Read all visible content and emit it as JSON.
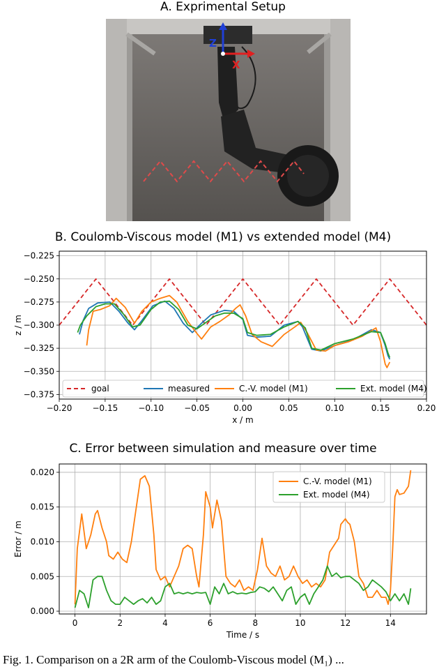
{
  "panel_a": {
    "title": "A. Exprimental Setup",
    "axis_z_label": "Z",
    "axis_x_label": "X"
  },
  "panel_b": {
    "title": "B. Coulomb-Viscous model (M1) vs extended model (M4)"
  },
  "panel_c": {
    "title": "C. Error between simulation and measure over time"
  },
  "caption": "Fig. 1.   Comparison on a 2R arm of the Coulomb-Viscous model (M₁) ...",
  "colors": {
    "goal": "#d62728",
    "measured": "#1f77b4",
    "m1": "#ff7f0e",
    "m4": "#2ca02c",
    "grid": "#b0b0b0",
    "photo_bg": "#6b6866"
  },
  "chart_data": [
    {
      "type": "line",
      "title": "B. Coulomb-Viscous model (M1) vs extended model (M4)",
      "xlabel": "x / m",
      "ylabel": "z / m",
      "xlim": [
        -0.2,
        0.2
      ],
      "ylim": [
        -0.38,
        -0.22
      ],
      "xticks": [
        -0.2,
        -0.15,
        -0.1,
        -0.05,
        0.0,
        0.05,
        0.1,
        0.15,
        0.2
      ],
      "xtick_labels": [
        "−0.20",
        "−0.15",
        "−0.10",
        "−0.05",
        "0.00",
        "0.05",
        "0.10",
        "0.15",
        "0.20"
      ],
      "yticks": [
        -0.225,
        -0.25,
        -0.275,
        -0.3,
        -0.325,
        -0.35,
        -0.375
      ],
      "ytick_labels": [
        "−0.225",
        "−0.250",
        "−0.275",
        "−0.300",
        "−0.325",
        "−0.350",
        "−0.375"
      ],
      "grid": true,
      "legend_position": "bottom",
      "series": [
        {
          "name": "goal",
          "color": "#d62728",
          "dashed": true,
          "x": [
            -0.2,
            -0.16,
            -0.12,
            -0.08,
            -0.04,
            0.0,
            0.04,
            0.08,
            0.12,
            0.16,
            0.2
          ],
          "y": [
            -0.3,
            -0.25,
            -0.3,
            -0.25,
            -0.3,
            -0.25,
            -0.3,
            -0.25,
            -0.3,
            -0.25,
            -0.3
          ]
        },
        {
          "name": "measured",
          "color": "#1f77b4",
          "dashed": false,
          "x": [
            -0.178,
            -0.174,
            -0.168,
            -0.158,
            -0.145,
            -0.135,
            -0.125,
            -0.118,
            -0.11,
            -0.098,
            -0.085,
            -0.075,
            -0.065,
            -0.055,
            -0.045,
            -0.035,
            -0.02,
            -0.01,
            0.0,
            0.005,
            0.015,
            0.03,
            0.045,
            0.06,
            0.065,
            0.075,
            0.085,
            0.1,
            0.12,
            0.14,
            0.15,
            0.155,
            0.158,
            0.16
          ],
          "y": [
            -0.31,
            -0.295,
            -0.282,
            -0.276,
            -0.275,
            -0.285,
            -0.298,
            -0.305,
            -0.295,
            -0.279,
            -0.274,
            -0.282,
            -0.298,
            -0.308,
            -0.298,
            -0.289,
            -0.284,
            -0.285,
            -0.294,
            -0.311,
            -0.313,
            -0.312,
            -0.3,
            -0.296,
            -0.302,
            -0.326,
            -0.328,
            -0.322,
            -0.316,
            -0.305,
            -0.308,
            -0.322,
            -0.333,
            -0.337
          ]
        },
        {
          "name": "C.-V. model (M1)",
          "color": "#ff7f0e",
          "dashed": false,
          "x": [
            -0.17,
            -0.168,
            -0.163,
            -0.155,
            -0.145,
            -0.138,
            -0.128,
            -0.118,
            -0.11,
            -0.1,
            -0.09,
            -0.08,
            -0.072,
            -0.06,
            -0.05,
            -0.045,
            -0.035,
            -0.025,
            -0.015,
            -0.008,
            -0.003,
            0.003,
            0.01,
            0.02,
            0.032,
            0.045,
            0.058,
            0.063,
            0.07,
            0.08,
            0.09,
            0.1,
            0.115,
            0.13,
            0.145,
            0.15,
            0.155,
            0.157,
            0.16
          ],
          "y": [
            -0.322,
            -0.305,
            -0.285,
            -0.283,
            -0.279,
            -0.271,
            -0.281,
            -0.298,
            -0.285,
            -0.275,
            -0.271,
            -0.268,
            -0.275,
            -0.296,
            -0.309,
            -0.315,
            -0.302,
            -0.296,
            -0.289,
            -0.282,
            -0.278,
            -0.29,
            -0.31,
            -0.318,
            -0.323,
            -0.31,
            -0.301,
            -0.297,
            -0.308,
            -0.327,
            -0.328,
            -0.322,
            -0.318,
            -0.312,
            -0.303,
            -0.318,
            -0.342,
            -0.346,
            -0.34
          ]
        },
        {
          "name": "Ext. model (M4)",
          "color": "#2ca02c",
          "dashed": false,
          "x": [
            -0.18,
            -0.177,
            -0.17,
            -0.16,
            -0.15,
            -0.14,
            -0.13,
            -0.12,
            -0.112,
            -0.1,
            -0.09,
            -0.08,
            -0.07,
            -0.06,
            -0.05,
            -0.04,
            -0.03,
            -0.02,
            -0.01,
            0.0,
            0.005,
            0.015,
            0.03,
            0.045,
            0.06,
            0.068,
            0.075,
            0.085,
            0.1,
            0.12,
            0.14,
            0.15,
            0.155,
            0.158,
            0.16
          ],
          "y": [
            -0.308,
            -0.3,
            -0.29,
            -0.28,
            -0.277,
            -0.277,
            -0.288,
            -0.302,
            -0.3,
            -0.283,
            -0.275,
            -0.274,
            -0.283,
            -0.3,
            -0.304,
            -0.297,
            -0.29,
            -0.287,
            -0.287,
            -0.293,
            -0.308,
            -0.311,
            -0.31,
            -0.302,
            -0.296,
            -0.303,
            -0.325,
            -0.327,
            -0.32,
            -0.315,
            -0.307,
            -0.308,
            -0.32,
            -0.33,
            -0.335
          ]
        }
      ]
    },
    {
      "type": "line",
      "title": "C. Error between simulation and measure over time",
      "xlabel": "Time / s",
      "ylabel": "Error / m",
      "xlim": [
        -0.7,
        15.6
      ],
      "ylim": [
        -0.0004,
        0.0212
      ],
      "xticks": [
        0,
        2,
        4,
        6,
        8,
        10,
        12,
        14
      ],
      "xtick_labels": [
        "0",
        "2",
        "4",
        "6",
        "8",
        "10",
        "12",
        "14"
      ],
      "yticks": [
        0.0,
        0.005,
        0.01,
        0.015,
        0.02
      ],
      "ytick_labels": [
        "0.000",
        "0.005",
        "0.010",
        "0.015",
        "0.020"
      ],
      "grid": true,
      "legend_position": "top-right",
      "series": [
        {
          "name": "C.-V. model (M1)",
          "color": "#ff7f0e",
          "x": [
            0.0,
            0.1,
            0.3,
            0.5,
            0.7,
            0.9,
            1.0,
            1.2,
            1.4,
            1.5,
            1.7,
            1.9,
            2.1,
            2.3,
            2.5,
            2.7,
            2.9,
            3.1,
            3.3,
            3.5,
            3.6,
            3.8,
            4.0,
            4.2,
            4.4,
            4.6,
            4.8,
            5.0,
            5.2,
            5.4,
            5.5,
            5.7,
            5.8,
            6.0,
            6.1,
            6.3,
            6.5,
            6.7,
            6.9,
            7.1,
            7.3,
            7.5,
            7.7,
            7.9,
            8.1,
            8.3,
            8.5,
            8.7,
            8.9,
            9.1,
            9.3,
            9.5,
            9.7,
            9.9,
            10.1,
            10.3,
            10.5,
            10.7,
            10.9,
            11.1,
            11.3,
            11.5,
            11.7,
            11.8,
            12.0,
            12.1,
            12.2,
            12.4,
            12.6,
            12.8,
            13.0,
            13.2,
            13.4,
            13.6,
            13.8,
            13.9,
            14.0,
            14.1,
            14.2,
            14.3,
            14.4,
            14.6,
            14.8,
            14.9
          ],
          "y": [
            0.001,
            0.009,
            0.014,
            0.009,
            0.011,
            0.014,
            0.0145,
            0.012,
            0.01,
            0.008,
            0.0075,
            0.0085,
            0.0075,
            0.007,
            0.01,
            0.0145,
            0.019,
            0.0195,
            0.018,
            0.011,
            0.006,
            0.0045,
            0.005,
            0.0035,
            0.005,
            0.0065,
            0.009,
            0.0095,
            0.009,
            0.005,
            0.0035,
            0.011,
            0.0172,
            0.015,
            0.012,
            0.016,
            0.013,
            0.005,
            0.004,
            0.0035,
            0.0045,
            0.003,
            0.0035,
            0.003,
            0.006,
            0.0105,
            0.0065,
            0.0055,
            0.005,
            0.0065,
            0.0045,
            0.005,
            0.0065,
            0.005,
            0.004,
            0.0045,
            0.0035,
            0.004,
            0.0035,
            0.0045,
            0.0085,
            0.0095,
            0.0105,
            0.0125,
            0.0133,
            0.0128,
            0.0125,
            0.01,
            0.005,
            0.004,
            0.002,
            0.002,
            0.003,
            0.002,
            0.002,
            0.001,
            0.003,
            0.009,
            0.0165,
            0.0175,
            0.0168,
            0.017,
            0.018,
            0.0203
          ]
        },
        {
          "name": "Ext. model (M4)",
          "color": "#2ca02c",
          "x": [
            0.0,
            0.2,
            0.4,
            0.6,
            0.8,
            1.0,
            1.2,
            1.4,
            1.6,
            1.8,
            2.0,
            2.2,
            2.4,
            2.6,
            2.8,
            3.0,
            3.2,
            3.4,
            3.6,
            3.8,
            4.0,
            4.2,
            4.4,
            4.6,
            4.8,
            5.0,
            5.2,
            5.4,
            5.6,
            5.8,
            6.0,
            6.2,
            6.4,
            6.6,
            6.8,
            7.0,
            7.2,
            7.4,
            7.6,
            7.8,
            8.0,
            8.2,
            8.4,
            8.6,
            8.8,
            9.0,
            9.2,
            9.4,
            9.6,
            9.8,
            10.0,
            10.2,
            10.4,
            10.6,
            10.8,
            11.0,
            11.2,
            11.4,
            11.6,
            11.8,
            12.0,
            12.2,
            12.4,
            12.6,
            12.8,
            13.0,
            13.2,
            13.4,
            13.6,
            13.8,
            14.0,
            14.2,
            14.4,
            14.6,
            14.8,
            14.9
          ],
          "y": [
            0.0005,
            0.003,
            0.0025,
            0.0005,
            0.0045,
            0.005,
            0.005,
            0.003,
            0.0015,
            0.001,
            0.001,
            0.002,
            0.0015,
            0.001,
            0.0015,
            0.0018,
            0.0012,
            0.002,
            0.001,
            0.0015,
            0.0035,
            0.004,
            0.0025,
            0.0027,
            0.0025,
            0.0027,
            0.0025,
            0.0027,
            0.0026,
            0.0027,
            0.001,
            0.0035,
            0.0025,
            0.004,
            0.0025,
            0.0028,
            0.0025,
            0.0026,
            0.0025,
            0.0027,
            0.0028,
            0.0035,
            0.0033,
            0.0028,
            0.0035,
            0.0025,
            0.0015,
            0.003,
            0.0035,
            0.001,
            0.002,
            0.0025,
            0.001,
            0.0025,
            0.0035,
            0.0045,
            0.0065,
            0.005,
            0.0055,
            0.0048,
            0.005,
            0.005,
            0.0045,
            0.004,
            0.003,
            0.0035,
            0.0045,
            0.004,
            0.0035,
            0.0028,
            0.0015,
            0.0025,
            0.0015,
            0.0025,
            0.001,
            0.0033
          ]
        }
      ]
    }
  ]
}
